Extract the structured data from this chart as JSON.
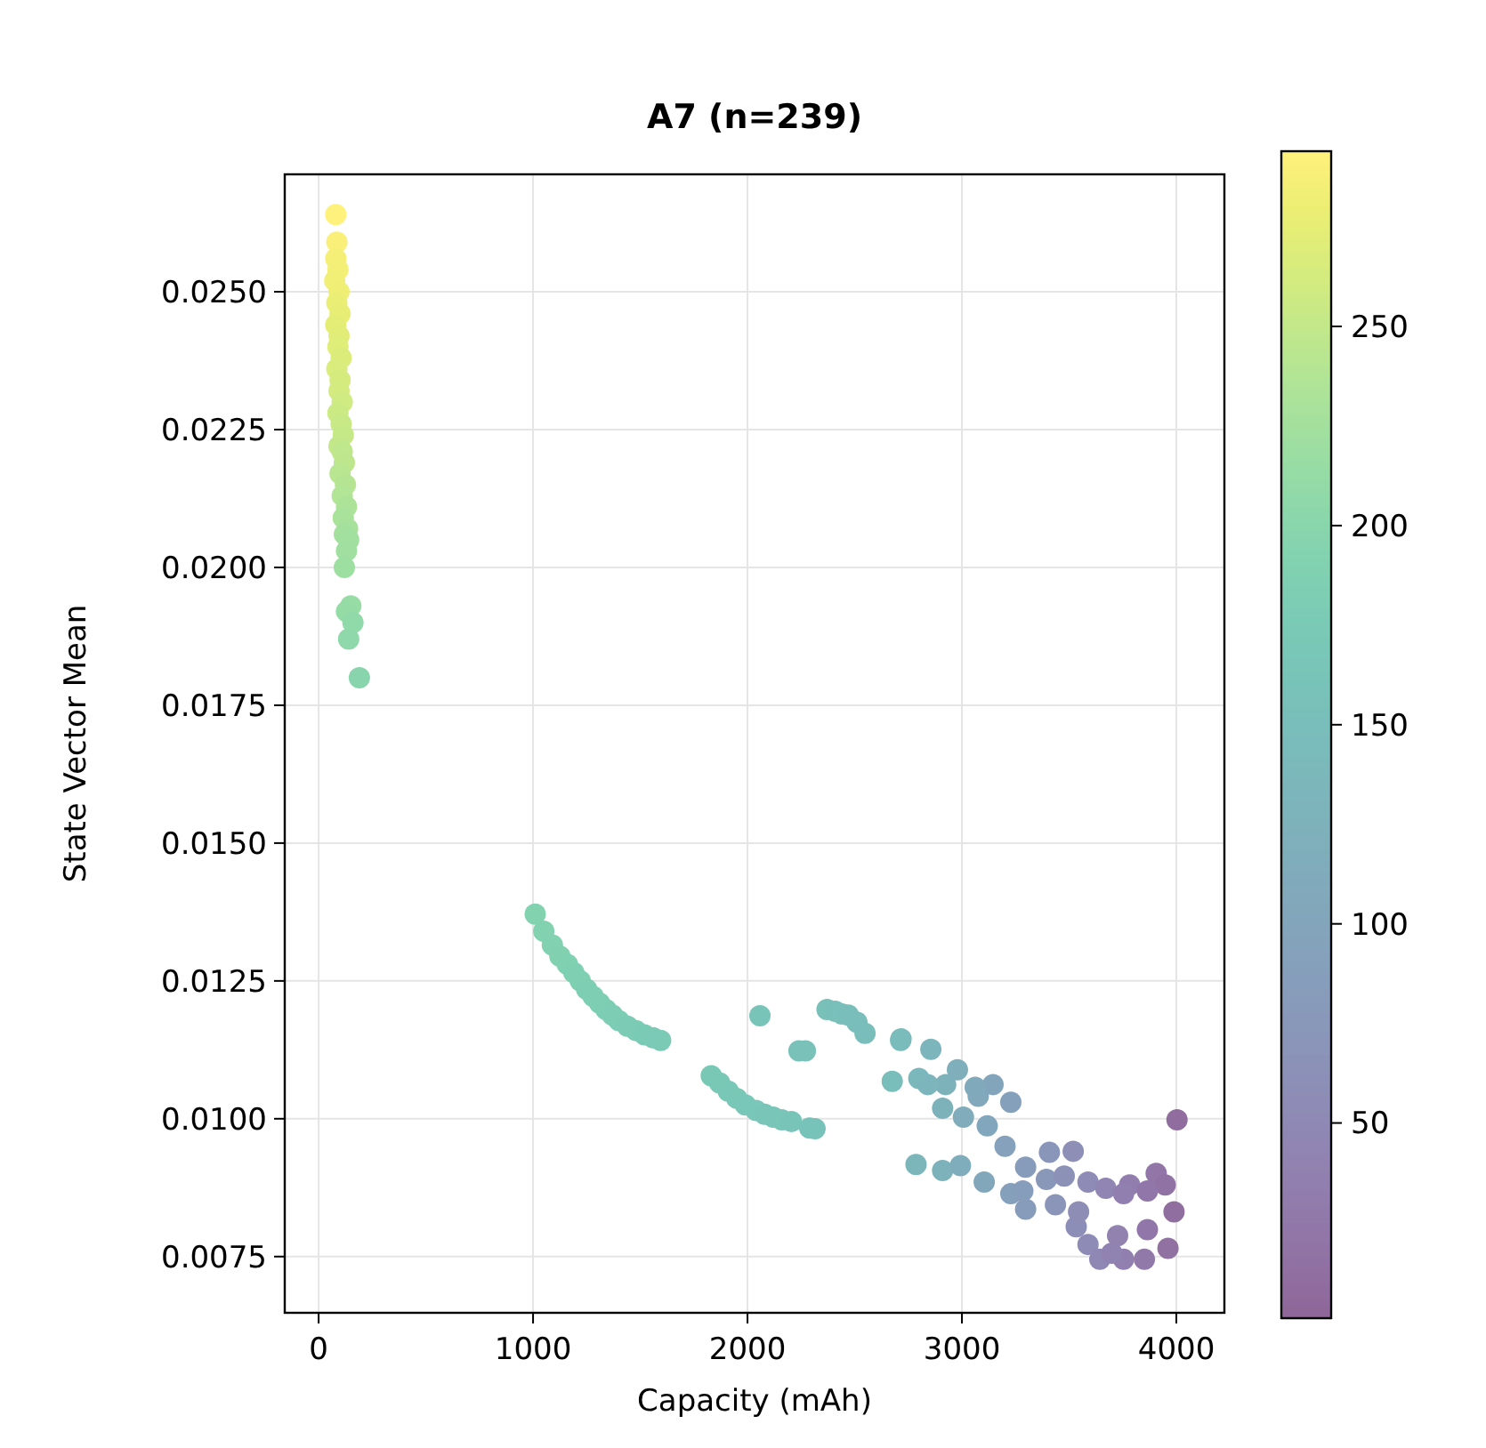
{
  "chart_data": {
    "type": "scatter",
    "title": "A7 (n=239)",
    "xlabel": "Capacity (mAh)",
    "ylabel": "State Vector Mean",
    "xlim": [
      -158,
      4224
    ],
    "xticks": [
      0,
      1000,
      2000,
      3000,
      4000
    ],
    "ylim": [
      0.00648,
      0.02713
    ],
    "yticks": [
      {
        "value": 0.0075,
        "label": "0.0075"
      },
      {
        "value": 0.01,
        "label": "0.0100"
      },
      {
        "value": 0.0125,
        "label": "0.0125"
      },
      {
        "value": 0.015,
        "label": "0.0150"
      },
      {
        "value": 0.0175,
        "label": "0.0175"
      },
      {
        "value": 0.02,
        "label": "0.0200"
      },
      {
        "value": 0.0225,
        "label": "0.0225"
      },
      {
        "value": 0.025,
        "label": "0.0250"
      }
    ],
    "clim": [
      1,
      294
    ],
    "cticks": [
      50,
      100,
      150,
      200,
      250
    ],
    "grid": true,
    "marker": "circle",
    "x": [
      80,
      85,
      80,
      90,
      75,
      95,
      85,
      100,
      80,
      95,
      90,
      105,
      85,
      100,
      95,
      110,
      90,
      105,
      115,
      95,
      110,
      120,
      100,
      125,
      110,
      130,
      115,
      135,
      120,
      140,
      130,
      120,
      150,
      130,
      160,
      140,
      190,
      1010,
      1050,
      1090,
      1125,
      1160,
      1190,
      1220,
      1250,
      1280,
      1310,
      1340,
      1370,
      1400,
      1440,
      1480,
      1520,
      1560,
      1595,
      1831,
      1870,
      1910,
      1950,
      1990,
      2040,
      2080,
      2120,
      2160,
      2205,
      2315,
      2290,
      2058,
      2240,
      2270,
      2371,
      2410,
      2440,
      2470,
      2510,
      2548,
      2714,
      2855,
      2716,
      2675,
      2799,
      2924,
      2979,
      2910,
      3076,
      3145,
      3228,
      3007,
      3118,
      3201,
      3297,
      2786,
      2910,
      2993,
      3104,
      3228,
      3297,
      3408,
      3519,
      3394,
      3477,
      3436,
      3588,
      3671,
      3782,
      3906,
      3948,
      4003,
      3726,
      3865,
      3989,
      3961,
      3533,
      3588,
      3643,
      3754,
      3851,
      3699,
      3544,
      3284,
      3754,
      3865,
      3062,
      2841
    ],
    "values": [
      0.0264,
      0.0259,
      0.0256,
      0.0254,
      0.0252,
      0.025,
      0.0248,
      0.0246,
      0.0244,
      0.0242,
      0.024,
      0.0238,
      0.0236,
      0.0234,
      0.0232,
      0.023,
      0.0228,
      0.0226,
      0.0224,
      0.0222,
      0.0221,
      0.0219,
      0.0217,
      0.0215,
      0.0213,
      0.0211,
      0.0209,
      0.0207,
      0.0206,
      0.0205,
      0.0203,
      0.02,
      0.0193,
      0.0192,
      0.019,
      0.0187,
      0.018,
      0.01371,
      0.0134,
      0.01315,
      0.01295,
      0.0128,
      0.01265,
      0.0125,
      0.01235,
      0.01222,
      0.0121,
      0.01198,
      0.01188,
      0.01178,
      0.01168,
      0.0116,
      0.01152,
      0.01147,
      0.01142,
      0.01078,
      0.01065,
      0.0105,
      0.01037,
      0.01025,
      0.01015,
      0.01008,
      0.01003,
      0.00998,
      0.00995,
      0.00982,
      0.00983,
      0.01187,
      0.01123,
      0.01123,
      0.01198,
      0.01195,
      0.0119,
      0.01188,
      0.01175,
      0.01155,
      0.01142,
      0.01126,
      0.01145,
      0.01068,
      0.01073,
      0.01062,
      0.01089,
      0.01019,
      0.01041,
      0.01062,
      0.0103,
      0.01003,
      0.00987,
      0.0095,
      0.00912,
      0.00917,
      0.00906,
      0.00915,
      0.00885,
      0.00864,
      0.00836,
      0.00939,
      0.00941,
      0.0089,
      0.00896,
      0.00844,
      0.00885,
      0.00874,
      0.0088,
      0.00901,
      0.0088,
      0.00998,
      0.00788,
      0.00799,
      0.00831,
      0.00765,
      0.00804,
      0.00772,
      0.00745,
      0.00745,
      0.00745,
      0.00756,
      0.00831,
      0.00869,
      0.00864,
      0.00869,
      0.01057,
      0.01062
    ],
    "cvalues": [
      294,
      290,
      287,
      285,
      283,
      281,
      279,
      276,
      274,
      272,
      270,
      268,
      266,
      264,
      262,
      259,
      257,
      254,
      252,
      250,
      248,
      246,
      243,
      240,
      237,
      234,
      231,
      228,
      226,
      224,
      222,
      220,
      214,
      212,
      208,
      205,
      198,
      192,
      191,
      190,
      189,
      188,
      187,
      186,
      185,
      184,
      183,
      182,
      181,
      180,
      179,
      178,
      177,
      176,
      175,
      172,
      171,
      170,
      169,
      168,
      167,
      166,
      165,
      164,
      163,
      160,
      161,
      162,
      158,
      157,
      155,
      154,
      153,
      152,
      151,
      150,
      147,
      132,
      147,
      151,
      138,
      125,
      119,
      126,
      108,
      100,
      91,
      114,
      102,
      93,
      83,
      135,
      125,
      116,
      104,
      91,
      83,
      72,
      60,
      74,
      65,
      70,
      54,
      45,
      34,
      21,
      16,
      10,
      39,
      25,
      12,
      14,
      59,
      54,
      48,
      36,
      26,
      42,
      58,
      85,
      36,
      25,
      111,
      132
    ]
  }
}
